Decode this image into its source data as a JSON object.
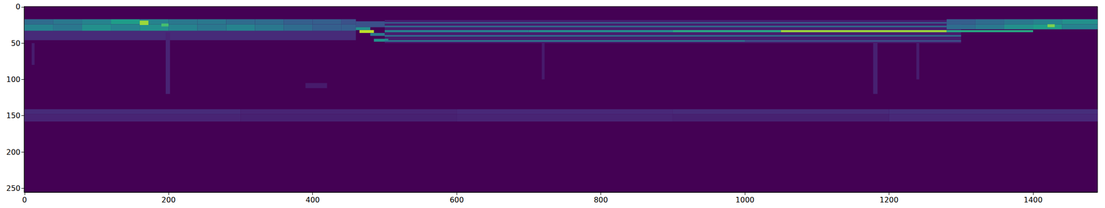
{
  "chart_data": {
    "type": "heatmap",
    "xlim": [
      -0.5,
      1489.5
    ],
    "ylim": [
      255.5,
      -0.5
    ],
    "xticks": [
      0,
      200,
      400,
      600,
      800,
      1000,
      1200,
      1400
    ],
    "yticks": [
      0,
      50,
      100,
      150,
      200,
      250
    ],
    "grid": false,
    "zlim": [
      0,
      1
    ],
    "cells": [
      [
        0,
        460,
        33,
        46,
        0.12
      ],
      [
        500,
        1300,
        18,
        50,
        0.08
      ],
      [
        0,
        300,
        141,
        148,
        0.12
      ],
      [
        300,
        600,
        141,
        148,
        0.1
      ],
      [
        600,
        900,
        141,
        148,
        0.11
      ],
      [
        900,
        1200,
        141,
        148,
        0.12
      ],
      [
        1200,
        1490,
        141,
        148,
        0.13
      ],
      [
        0,
        300,
        148,
        158,
        0.1
      ],
      [
        300,
        600,
        148,
        158,
        0.09
      ],
      [
        600,
        900,
        148,
        158,
        0.1
      ],
      [
        900,
        1200,
        148,
        158,
        0.09
      ],
      [
        1200,
        1490,
        148,
        158,
        0.11
      ],
      [
        196,
        202,
        35,
        120,
        0.1
      ],
      [
        718,
        722,
        50,
        100,
        0.07
      ],
      [
        1178,
        1184,
        50,
        120,
        0.09
      ],
      [
        1238,
        1242,
        50,
        100,
        0.08
      ],
      [
        10,
        14,
        50,
        80,
        0.08
      ],
      [
        390,
        420,
        105,
        112,
        0.07
      ],
      [
        0,
        40,
        17,
        24,
        0.35
      ],
      [
        40,
        80,
        17,
        24,
        0.4
      ],
      [
        80,
        120,
        17,
        24,
        0.45
      ],
      [
        120,
        160,
        17,
        24,
        0.55
      ],
      [
        160,
        200,
        17,
        24,
        0.45
      ],
      [
        200,
        240,
        17,
        24,
        0.4
      ],
      [
        240,
        280,
        17,
        24,
        0.4
      ],
      [
        280,
        320,
        17,
        24,
        0.35
      ],
      [
        320,
        360,
        17,
        24,
        0.35
      ],
      [
        360,
        400,
        17,
        24,
        0.3
      ],
      [
        400,
        440,
        17,
        24,
        0.3
      ],
      [
        440,
        460,
        17,
        24,
        0.25
      ],
      [
        0,
        40,
        24,
        33,
        0.45
      ],
      [
        40,
        80,
        24,
        33,
        0.4
      ],
      [
        80,
        120,
        24,
        33,
        0.5
      ],
      [
        120,
        160,
        24,
        33,
        0.45
      ],
      [
        160,
        200,
        24,
        33,
        0.5
      ],
      [
        200,
        240,
        24,
        33,
        0.45
      ],
      [
        240,
        280,
        24,
        33,
        0.4
      ],
      [
        280,
        320,
        24,
        33,
        0.45
      ],
      [
        320,
        360,
        24,
        33,
        0.4
      ],
      [
        360,
        400,
        24,
        33,
        0.35
      ],
      [
        400,
        440,
        24,
        33,
        0.3
      ],
      [
        440,
        460,
        24,
        33,
        0.3
      ],
      [
        160,
        172,
        19,
        25,
        0.85
      ],
      [
        190,
        200,
        23,
        27,
        0.7
      ],
      [
        460,
        500,
        20,
        28,
        0.25
      ],
      [
        460,
        480,
        28,
        32,
        0.5
      ],
      [
        465,
        485,
        32,
        36,
        0.9
      ],
      [
        480,
        500,
        36,
        40,
        0.4
      ],
      [
        485,
        505,
        44,
        48,
        0.5
      ],
      [
        500,
        1280,
        21,
        23,
        0.3
      ],
      [
        500,
        1280,
        26,
        28,
        0.35
      ],
      [
        500,
        700,
        32,
        35,
        0.45
      ],
      [
        700,
        900,
        32,
        35,
        0.5
      ],
      [
        900,
        1050,
        32,
        35,
        0.6
      ],
      [
        1050,
        1280,
        32,
        35,
        0.85
      ],
      [
        1280,
        1400,
        32,
        35,
        0.6
      ],
      [
        500,
        1300,
        39,
        41,
        0.35
      ],
      [
        500,
        1000,
        46,
        48,
        0.4
      ],
      [
        1000,
        1300,
        46,
        48,
        0.25
      ],
      [
        1280,
        1320,
        17,
        24,
        0.3
      ],
      [
        1320,
        1360,
        17,
        24,
        0.35
      ],
      [
        1360,
        1400,
        17,
        24,
        0.4
      ],
      [
        1400,
        1440,
        17,
        24,
        0.45
      ],
      [
        1440,
        1490,
        17,
        24,
        0.5
      ],
      [
        1280,
        1320,
        24,
        31,
        0.35
      ],
      [
        1320,
        1360,
        24,
        31,
        0.4
      ],
      [
        1360,
        1400,
        24,
        31,
        0.5
      ],
      [
        1400,
        1440,
        24,
        31,
        0.55
      ],
      [
        1440,
        1490,
        24,
        31,
        0.45
      ],
      [
        1420,
        1430,
        24,
        28,
        0.8
      ]
    ]
  }
}
